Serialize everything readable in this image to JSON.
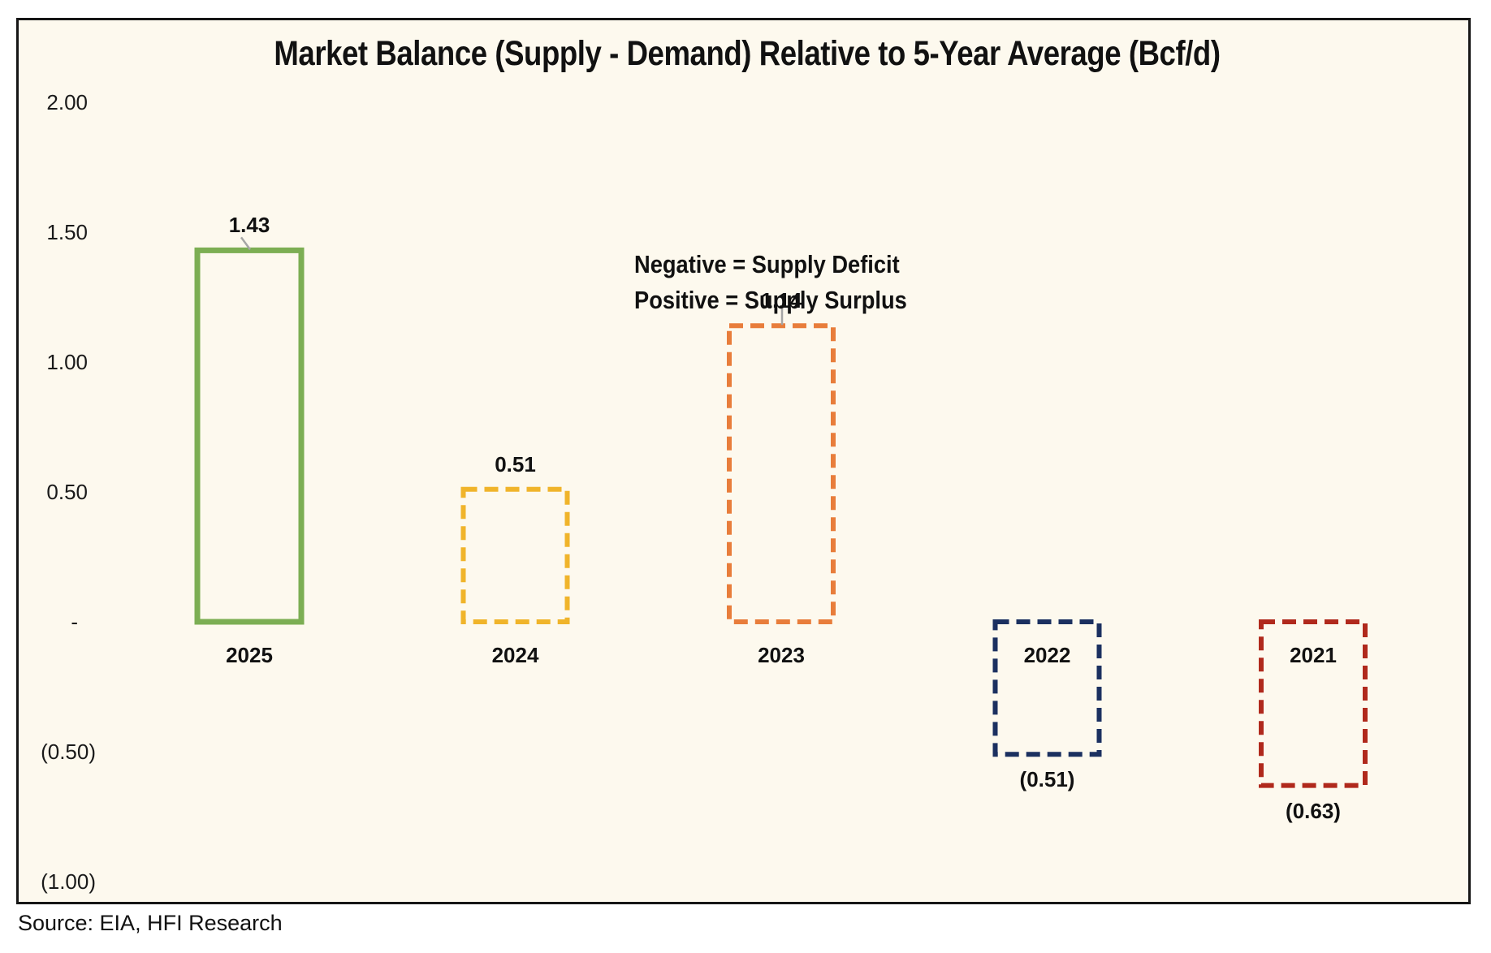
{
  "title": "Market Balance (Supply - Demand) Relative to 5-Year Average (Bcf/d)",
  "annotation": {
    "line1": "Negative = Supply Deficit",
    "line2": "Positive = Supply Surplus"
  },
  "source": "Source: EIA, HFI Research",
  "colors": {
    "plot_background": "#FDF9EE",
    "frame_border": "#161616",
    "leader_line": "#A6A6A6",
    "text": "#111111"
  },
  "chart_data": {
    "type": "bar",
    "title": "Market Balance (Supply - Demand) Relative to 5-Year Average (Bcf/d)",
    "unit": "Bcf/d",
    "categories": [
      "2025",
      "2024",
      "2023",
      "2022",
      "2021"
    ],
    "values": [
      1.43,
      0.51,
      1.14,
      -0.51,
      -0.63
    ],
    "value_labels": [
      "1.43",
      "0.51",
      "1.14",
      "(0.51)",
      "(0.63)"
    ],
    "bar_colors": [
      "#7CAE53",
      "#F0B42A",
      "#E87D3B",
      "#1B3060",
      "#B0291C"
    ],
    "bar_styles": [
      "solid",
      "dashed",
      "dashed",
      "dashed",
      "dashed"
    ],
    "leader_line": [
      true,
      false,
      true,
      false,
      false
    ],
    "ylim": [
      -1.08,
      2.33
    ],
    "yticks": [
      {
        "value": 2.0,
        "label": "2.00"
      },
      {
        "value": 1.5,
        "label": "1.50"
      },
      {
        "value": 1.0,
        "label": "1.00"
      },
      {
        "value": 0.5,
        "label": "0.50"
      },
      {
        "value": 0.0,
        "label": "-"
      },
      {
        "value": -0.5,
        "label": "(0.50)"
      },
      {
        "value": -1.0,
        "label": "(1.00)"
      }
    ],
    "grid": false,
    "legend": false
  }
}
